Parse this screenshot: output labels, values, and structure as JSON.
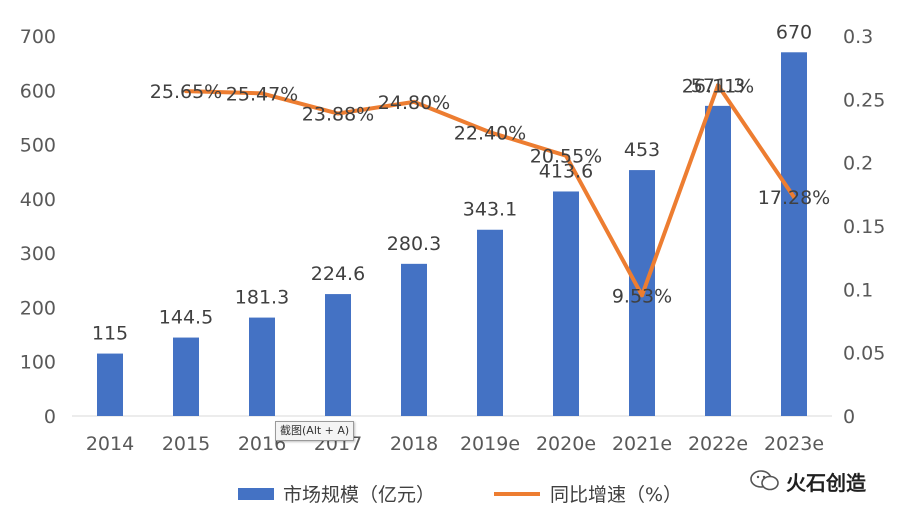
{
  "chart_data": {
    "type": "bar+line",
    "categories": [
      "2014",
      "2015",
      "2016",
      "2017",
      "2018",
      "2019e",
      "2020e",
      "2021e",
      "2022e",
      "2023e"
    ],
    "series": [
      {
        "name": "市场规模（亿元）",
        "type": "bar",
        "axis": "left",
        "color": "#4472C4",
        "values": [
          115,
          144.5,
          181.3,
          224.6,
          280.3,
          343.1,
          413.6,
          453,
          571.3,
          670
        ],
        "labels": [
          "115",
          "144.5",
          "181.3",
          "224.6",
          "280.3",
          "343.1",
          "413.6",
          "453",
          "571.3",
          "670"
        ]
      },
      {
        "name": "同比增速（%）",
        "type": "line",
        "axis": "right",
        "color": "#ED7D31",
        "x": [
          "2015",
          "2016",
          "2017",
          "2018",
          "2019e",
          "2020e",
          "2021e",
          "2022e",
          "2023e"
        ],
        "values": [
          0.2565,
          0.2547,
          0.2388,
          0.248,
          0.224,
          0.2055,
          0.0953,
          0.2611,
          0.1728
        ],
        "labels": [
          "25.65%",
          "25.47%",
          "23.88%",
          "24.80%",
          "22.40%",
          "20.55%",
          "9.53%",
          "26.11%",
          "17.28%"
        ]
      }
    ],
    "y_left": {
      "ylim": [
        0,
        700
      ],
      "ticks": [
        "0",
        "100",
        "200",
        "300",
        "400",
        "500",
        "600",
        "700"
      ]
    },
    "y_right": {
      "ylim": [
        0,
        0.3
      ],
      "ticks": [
        "0",
        "0.05",
        "0.1",
        "0.15",
        "0.2",
        "0.25",
        "0.3"
      ]
    },
    "grid": false,
    "legend_position": "bottom"
  },
  "tooltip": {
    "text": "截图(Alt + A)"
  },
  "watermark": {
    "text": "火石创造",
    "icon": "wechat-icon"
  }
}
